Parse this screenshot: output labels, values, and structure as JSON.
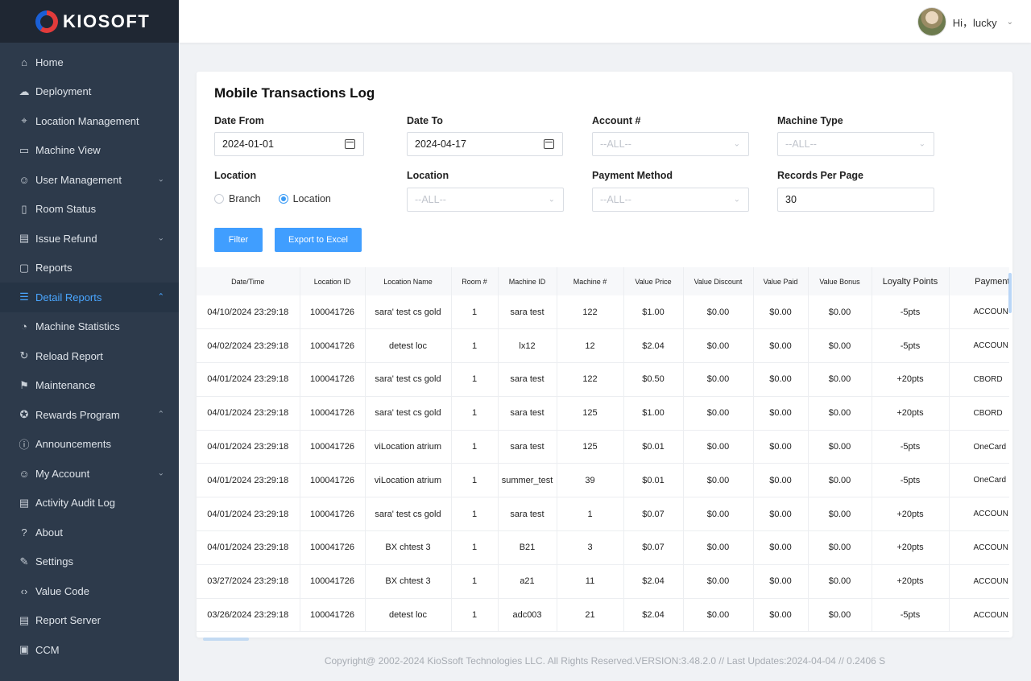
{
  "brand": {
    "name": "KIOSOFT"
  },
  "header": {
    "greeting": "Hi，lucky"
  },
  "sidebar": {
    "items": [
      {
        "label": "Home",
        "icon": "home-icon",
        "glyph": "⌂"
      },
      {
        "label": "Deployment",
        "icon": "cloud-icon",
        "glyph": "☁"
      },
      {
        "label": "Location Management",
        "icon": "map-pin-icon",
        "glyph": "⌖"
      },
      {
        "label": "Machine View",
        "icon": "monitor-icon",
        "glyph": "▭"
      },
      {
        "label": "User Management",
        "icon": "users-icon",
        "glyph": "☺",
        "chevron": "⌄"
      },
      {
        "label": "Room Status",
        "icon": "door-icon",
        "glyph": "▯"
      },
      {
        "label": "Issue Refund",
        "icon": "refund-icon",
        "glyph": "▤",
        "chevron": "⌄"
      },
      {
        "label": "Reports",
        "icon": "document-icon",
        "glyph": "▢"
      },
      {
        "label": "Detail Reports",
        "icon": "list-document-icon",
        "glyph": "☰",
        "chevron": "⌃",
        "active": true
      },
      {
        "label": "Machine Statistics",
        "icon": "pie-chart-icon",
        "glyph": "◔"
      },
      {
        "label": "Reload Report",
        "icon": "reload-icon",
        "glyph": "↻"
      },
      {
        "label": "Maintenance",
        "icon": "flag-icon",
        "glyph": "⚑"
      },
      {
        "label": "Rewards Program",
        "icon": "badge-icon",
        "glyph": "✪",
        "chevron": "⌃"
      },
      {
        "label": "Announcements",
        "icon": "alert-icon",
        "glyph": "ⓘ"
      },
      {
        "label": "My Account",
        "icon": "account-icon",
        "glyph": "☺",
        "chevron": "⌄"
      },
      {
        "label": "Activity Audit Log",
        "icon": "log-icon",
        "glyph": "▤"
      },
      {
        "label": "About",
        "icon": "question-icon",
        "glyph": "?"
      },
      {
        "label": "Settings",
        "icon": "wrench-icon",
        "glyph": "✎"
      },
      {
        "label": "Value Code",
        "icon": "code-icon",
        "glyph": "‹›"
      },
      {
        "label": "Report Server",
        "icon": "server-icon",
        "glyph": "▤"
      },
      {
        "label": "CCM",
        "icon": "ccm-icon",
        "glyph": "▣"
      }
    ]
  },
  "page": {
    "title": "Mobile Transactions Log",
    "filters": {
      "date_from_label": "Date From",
      "date_from_value": "2024-01-01",
      "date_to_label": "Date To",
      "date_to_value": "2024-04-17",
      "account_label": "Account #",
      "account_placeholder": "--ALL--",
      "machine_type_label": "Machine Type",
      "machine_type_placeholder": "--ALL--",
      "location_mode_label": "Location",
      "radio_branch": "Branch",
      "radio_location": "Location",
      "location_label": "Location",
      "location_placeholder": "--ALL--",
      "payment_method_label": "Payment Method",
      "payment_method_placeholder": "--ALL--",
      "records_label": "Records Per Page",
      "records_value": "30"
    },
    "buttons": {
      "filter": "Filter",
      "export": "Export to Excel"
    }
  },
  "table": {
    "columns": [
      "Date/Time",
      "Location ID",
      "Location Name",
      "Room #",
      "Machine ID",
      "Machine #",
      "Value Price",
      "Value Discount",
      "Value Paid",
      "Value Bonus",
      "Loyalty Points",
      "Payment Me"
    ],
    "rows": [
      [
        "04/10/2024 23:29:18",
        "100041726",
        "sara' test cs gold",
        "1",
        "sara test",
        "122",
        "$1.00",
        "$0.00",
        "$0.00",
        "$0.00",
        "-5pts",
        "ACCOUN"
      ],
      [
        "04/02/2024 23:29:18",
        "100041726",
        "detest loc",
        "1",
        "lx12",
        "12",
        "$2.04",
        "$0.00",
        "$0.00",
        "$0.00",
        "-5pts",
        "ACCOUN"
      ],
      [
        "04/01/2024 23:29:18",
        "100041726",
        "sara' test cs gold",
        "1",
        "sara test",
        "122",
        "$0.50",
        "$0.00",
        "$0.00",
        "$0.00",
        "+20pts",
        "CBORD"
      ],
      [
        "04/01/2024 23:29:18",
        "100041726",
        "sara' test cs gold",
        "1",
        "sara test",
        "125",
        "$1.00",
        "$0.00",
        "$0.00",
        "$0.00",
        "+20pts",
        "CBORD"
      ],
      [
        "04/01/2024 23:29:18",
        "100041726",
        "viLocation atrium",
        "1",
        "sara test",
        "125",
        "$0.01",
        "$0.00",
        "$0.00",
        "$0.00",
        "-5pts",
        "OneCard"
      ],
      [
        "04/01/2024 23:29:18",
        "100041726",
        "viLocation atrium",
        "1",
        "summer_test",
        "39",
        "$0.01",
        "$0.00",
        "$0.00",
        "$0.00",
        "-5pts",
        "OneCard"
      ],
      [
        "04/01/2024 23:29:18",
        "100041726",
        "sara' test cs gold",
        "1",
        "sara test",
        "1",
        "$0.07",
        "$0.00",
        "$0.00",
        "$0.00",
        "+20pts",
        "ACCOUN"
      ],
      [
        "04/01/2024 23:29:18",
        "100041726",
        "BX chtest 3",
        "1",
        "B21",
        "3",
        "$0.07",
        "$0.00",
        "$0.00",
        "$0.00",
        "+20pts",
        "ACCOUN"
      ],
      [
        "03/27/2024 23:29:18",
        "100041726",
        "BX chtest 3",
        "1",
        "a21",
        "11",
        "$2.04",
        "$0.00",
        "$0.00",
        "$0.00",
        "+20pts",
        "ACCOUN"
      ],
      [
        "03/26/2024 23:29:18",
        "100041726",
        "detest loc",
        "1",
        "adc003",
        "21",
        "$2.04",
        "$0.00",
        "$0.00",
        "$0.00",
        "-5pts",
        "ACCOUN"
      ]
    ]
  },
  "footer": {
    "text": "Copyright@ 2002-2024 KioSsoft Technologies LLC. All Rights Reserved.VERSION:3.48.2.0 // Last Updates:2024-04-04 // 0.2406 S"
  },
  "colors": {
    "sidebar_bg": "#2d3a4b",
    "accent": "#409eff",
    "active_text": "#4aa6ff"
  }
}
